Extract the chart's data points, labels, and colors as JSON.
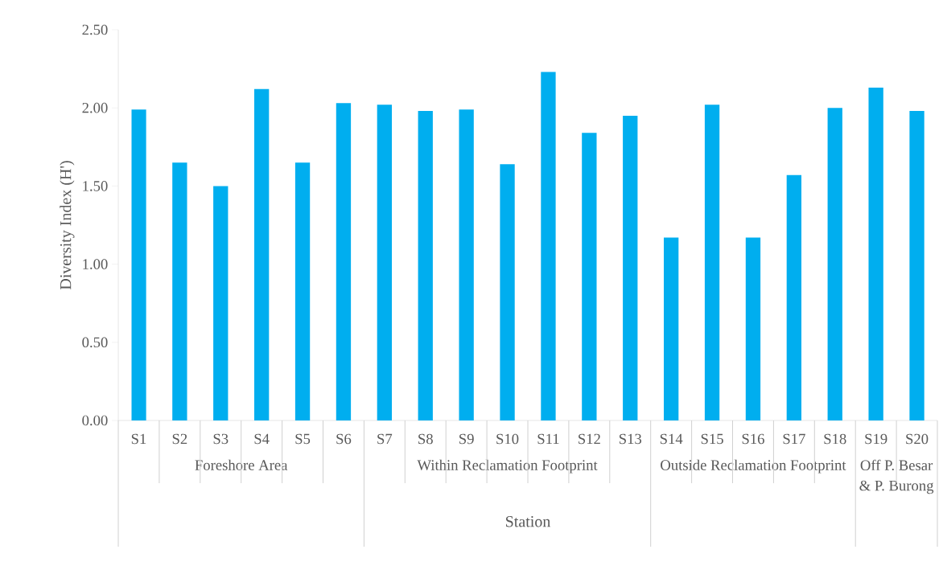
{
  "chart_data": {
    "type": "bar",
    "xlabel": "Station",
    "ylabel": "Diversity Index (H')",
    "categories": [
      "S1",
      "S2",
      "S3",
      "S4",
      "S5",
      "S6",
      "S7",
      "S8",
      "S9",
      "S10",
      "S11",
      "S12",
      "S13",
      "S14",
      "S15",
      "S16",
      "S17",
      "S18",
      "S19",
      "S20"
    ],
    "values": [
      1.99,
      1.65,
      1.5,
      2.12,
      1.65,
      2.03,
      2.02,
      1.98,
      1.99,
      1.64,
      2.23,
      1.84,
      1.95,
      1.17,
      2.02,
      1.17,
      1.57,
      2.0,
      2.13,
      1.98
    ],
    "color": "#00aeef",
    "ylim": [
      0,
      2.5
    ],
    "yticks": [
      {
        "value": 0,
        "label": "0.00"
      },
      {
        "value": 0.5,
        "label": "0.50"
      },
      {
        "value": 1,
        "label": "1.00"
      },
      {
        "value": 1.5,
        "label": "1.50"
      },
      {
        "value": 2,
        "label": "2.00"
      },
      {
        "value": 2.5,
        "label": "2.50"
      }
    ],
    "annotations": [
      "Foreshore Area",
      "Within Reclamation Footprint",
      "Outside Reclamation Footprint",
      "Off P. Besar & P. Burong"
    ],
    "grid": false
  }
}
